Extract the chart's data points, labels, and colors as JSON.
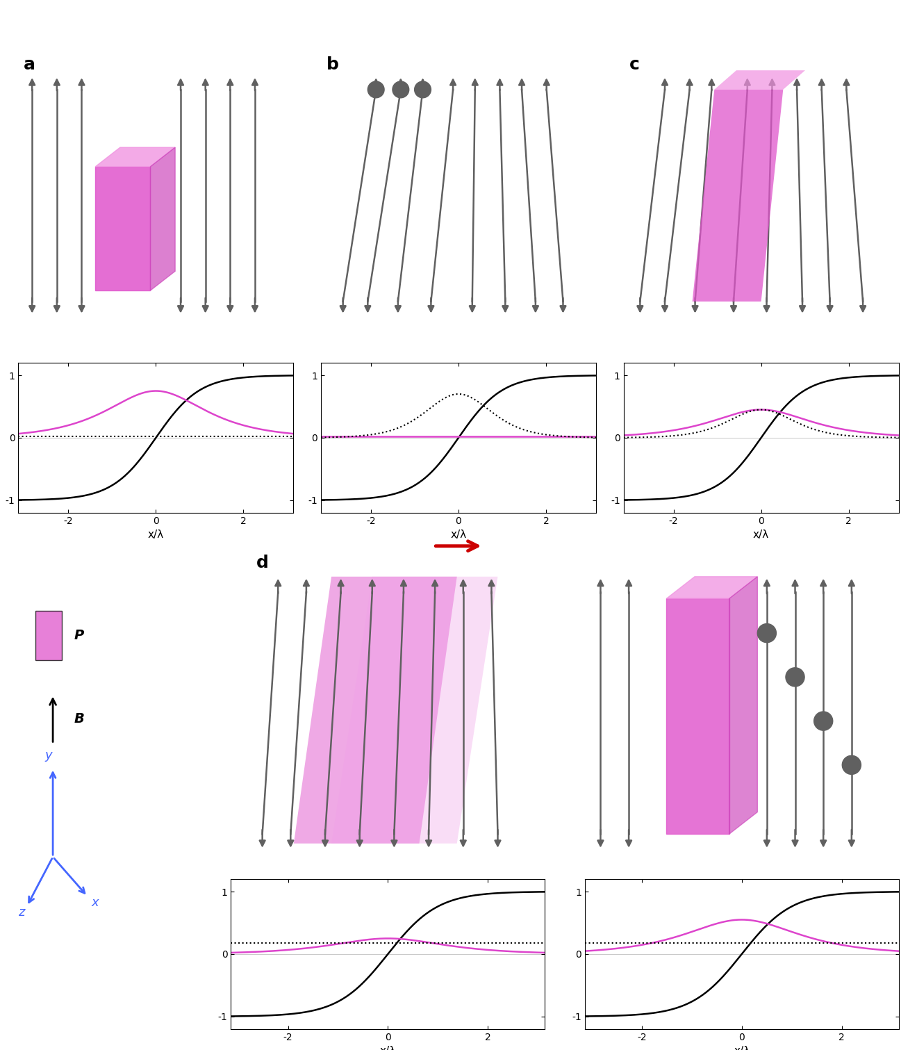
{
  "background_color": "#ffffff",
  "magenta_color": "#dd44cc",
  "magenta_face": "#e060d0",
  "magenta_light": "#f0a0e8",
  "magenta_fill": "#e879d9",
  "arrow_color": "#666666",
  "arrow_dark": "#555555",
  "panel_labels": [
    "a",
    "b",
    "c",
    "d"
  ],
  "label_fontsize": 18,
  "axis_fontsize": 11,
  "tick_fontsize": 10,
  "x_range": [
    -3.14,
    3.14
  ],
  "x_label": "x/λ",
  "y_ticks": [
    -1,
    0,
    1
  ],
  "red_arrow": "#cc0000"
}
